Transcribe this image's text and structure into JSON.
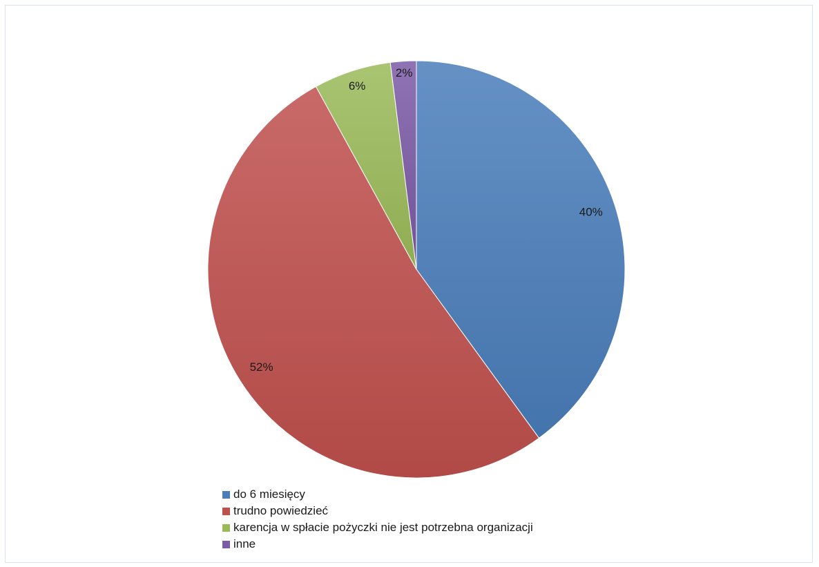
{
  "chart_data": {
    "type": "pie",
    "title": "",
    "categories": [
      "do 6 miesięcy",
      "trudno powiedzieć",
      "karencja w spłacie pożyczki nie jest potrzebna organizacji",
      "inne"
    ],
    "values": [
      40,
      52,
      6,
      2
    ],
    "value_labels": [
      "40%",
      "52%",
      "6%",
      "2%"
    ],
    "unit": "%",
    "colors": [
      "#4a7ebb",
      "#c0504d",
      "#9bbb59",
      "#7b5aa6"
    ],
    "legend_position": "bottom-left"
  }
}
